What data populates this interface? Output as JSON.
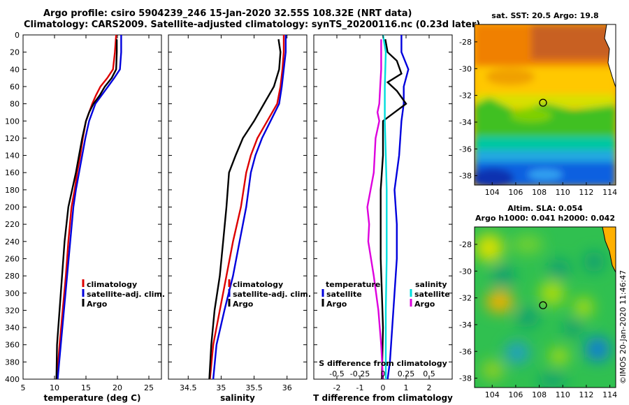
{
  "title": {
    "line1": "Argo profile: csiro 5904239_246 15-Jan-2020 32.55S 108.32E (NRT data)",
    "line2": "Climatology: CARS2009. Satellite-adjusted climatology: synTS_20200116.nc (0.23d later)"
  },
  "colors": {
    "climatology": "#dd0000",
    "satellite": "#0000dd",
    "argo": "#000000",
    "salinity_argo": "#dd00dd",
    "salinity_satellite": "#00dddd"
  },
  "chart_data": [
    {
      "type": "line",
      "id": "temperature",
      "xlabel": "temperature (deg C)",
      "ylabel": "",
      "xlim": [
        5,
        27
      ],
      "ylim": [
        400,
        0
      ],
      "xticks": [
        "5",
        "10",
        "15",
        "20",
        "25"
      ],
      "xtick_values": [
        5,
        10,
        15,
        20,
        25
      ],
      "yticks": [
        "0",
        "20",
        "40",
        "60",
        "80",
        "100",
        "120",
        "140",
        "160",
        "180",
        "200",
        "220",
        "240",
        "260",
        "280",
        "300",
        "320",
        "340",
        "360",
        "380",
        "400"
      ],
      "ytick_values": [
        0,
        20,
        40,
        60,
        80,
        100,
        120,
        140,
        160,
        180,
        200,
        220,
        240,
        260,
        280,
        300,
        320,
        340,
        360,
        380,
        400
      ],
      "legend": [
        "climatology",
        "satellite-adj. clim.",
        "Argo"
      ],
      "series": [
        {
          "name": "climatology",
          "color_key": "climatology",
          "x": [
            19.8,
            19.6,
            19.3,
            18.4,
            17.3,
            16.6,
            16.0,
            15.0,
            14.5,
            14.1,
            13.6,
            13.2,
            12.7,
            12.2,
            11.8,
            11.3,
            10.8,
            10.4
          ],
          "y": [
            0,
            20,
            40,
            50,
            60,
            70,
            80,
            100,
            120,
            140,
            160,
            180,
            200,
            240,
            280,
            320,
            360,
            400
          ]
        },
        {
          "name": "satellite-adj. clim.",
          "color_key": "satellite",
          "x": [
            20.6,
            20.6,
            20.4,
            19.5,
            18.5,
            17.5,
            16.5,
            15.5,
            14.9,
            14.4,
            13.9,
            13.4,
            13.0,
            12.5,
            12.0,
            11.5,
            11.0,
            10.5
          ],
          "y": [
            0,
            20,
            40,
            50,
            60,
            70,
            80,
            100,
            120,
            140,
            160,
            180,
            200,
            240,
            280,
            320,
            360,
            400
          ]
        },
        {
          "name": "Argo",
          "color_key": "argo",
          "x": [
            19.9,
            19.9,
            19.8,
            19.1,
            18.0,
            17.2,
            16.2,
            15.5,
            15.0,
            14.4,
            13.9,
            13.4,
            12.8,
            12.2,
            11.6,
            11.2,
            10.8,
            10.4,
            10.3
          ],
          "y": [
            5,
            20,
            40,
            50,
            60,
            70,
            80,
            90,
            100,
            120,
            140,
            160,
            180,
            200,
            240,
            280,
            320,
            360,
            400
          ]
        }
      ]
    },
    {
      "type": "line",
      "id": "salinity",
      "xlabel": "salinity",
      "xlim": [
        34.2,
        36.3
      ],
      "ylim": [
        400,
        0
      ],
      "xticks": [
        "34.5",
        "35",
        "35.5",
        "36"
      ],
      "xtick_values": [
        34.5,
        35,
        35.5,
        36
      ],
      "legend": [
        "climatology",
        "satellite-adj. clim.",
        "Argo"
      ],
      "series": [
        {
          "name": "climatology",
          "color_key": "climatology",
          "x": [
            35.95,
            35.95,
            35.93,
            35.9,
            35.85,
            35.7,
            35.55,
            35.45,
            35.38,
            35.3,
            35.18,
            35.08,
            34.98,
            34.88,
            34.83
          ],
          "y": [
            0,
            20,
            40,
            60,
            80,
            100,
            120,
            140,
            160,
            200,
            240,
            280,
            320,
            360,
            400
          ]
        },
        {
          "name": "satellite-adj. clim.",
          "color_key": "satellite",
          "x": [
            35.98,
            35.98,
            35.95,
            35.92,
            35.88,
            35.75,
            35.62,
            35.52,
            35.45,
            35.38,
            35.28,
            35.18,
            35.05,
            34.93,
            34.88
          ],
          "y": [
            0,
            20,
            40,
            60,
            80,
            100,
            120,
            140,
            160,
            200,
            240,
            280,
            320,
            360,
            400
          ]
        },
        {
          "name": "Argo",
          "color_key": "argo",
          "x": [
            35.87,
            35.9,
            35.88,
            35.8,
            35.65,
            35.5,
            35.33,
            35.22,
            35.12,
            35.08,
            35.03,
            34.98,
            34.9,
            34.85,
            34.82
          ],
          "y": [
            5,
            20,
            40,
            60,
            80,
            100,
            120,
            140,
            160,
            200,
            240,
            280,
            320,
            360,
            400
          ]
        }
      ]
    },
    {
      "type": "line",
      "id": "differences",
      "xlabel": "T difference from climatology",
      "xlabel_top": "S difference from climatology",
      "xlim": [
        -3,
        3
      ],
      "ylim": [
        400,
        0
      ],
      "xticks": [
        "-2",
        "-1",
        "0",
        "1",
        "2"
      ],
      "xtick_values": [
        -2,
        -1,
        0,
        1,
        2
      ],
      "xticks_top": [
        "-0.5",
        "-0.25",
        "0",
        "0.25",
        "0.5"
      ],
      "xtick_values_top": [
        -0.5,
        -0.25,
        0,
        0.25,
        0.5
      ],
      "s_scale": 4,
      "legend_left_title": "temperature",
      "legend_right_title": "salinity",
      "legend_left": [
        "satellite",
        "Argo"
      ],
      "legend_right": [
        "satellite",
        "Argo"
      ],
      "series": [
        {
          "name": "T satellite",
          "color_key": "satellite",
          "x": [
            0.8,
            0.8,
            1.1,
            0.9,
            0.9,
            0.8,
            0.7,
            0.5,
            0.6,
            0.6,
            0.5,
            0.4,
            0.3,
            0.2
          ],
          "y": [
            0,
            20,
            40,
            60,
            80,
            100,
            140,
            180,
            220,
            260,
            300,
            340,
            380,
            400
          ]
        },
        {
          "name": "T Argo",
          "color_key": "argo",
          "x": [
            0.1,
            0.2,
            0.6,
            0.8,
            0.2,
            0.6,
            1.0,
            0.5,
            0.0,
            0.0,
            -0.1,
            -0.1,
            -0.1,
            -0.05,
            0.0,
            -0.05
          ],
          "y": [
            5,
            20,
            30,
            45,
            55,
            65,
            80,
            90,
            100,
            140,
            180,
            220,
            260,
            300,
            340,
            400
          ]
        },
        {
          "name": "S satellite",
          "color_key": "salinity_satellite",
          "x": [
            0.0,
            0.03,
            0.02,
            0.02,
            0.03,
            0.04,
            0.04,
            0.04,
            0.03,
            0.03
          ],
          "y": [
            0,
            20,
            60,
            100,
            140,
            180,
            220,
            260,
            320,
            400
          ]
        },
        {
          "name": "S Argo",
          "color_key": "salinity_argo",
          "x": [
            -0.02,
            -0.02,
            -0.03,
            -0.04,
            -0.06,
            -0.04,
            -0.08,
            -0.1,
            -0.17,
            -0.15,
            -0.16,
            -0.1,
            -0.05,
            -0.02,
            0.0
          ],
          "y": [
            5,
            40,
            60,
            80,
            90,
            100,
            120,
            160,
            200,
            220,
            240,
            280,
            320,
            360,
            400
          ]
        }
      ]
    },
    {
      "type": "heatmap",
      "id": "sst_map",
      "title": "sat. SST: 20.5 Argo: 19.8",
      "xlim": [
        102.5,
        114.5
      ],
      "ylim": [
        -38.7,
        -26.7
      ],
      "xticks": [
        "104",
        "106",
        "108",
        "110",
        "112",
        "114"
      ],
      "xtick_values": [
        104,
        106,
        108,
        110,
        112,
        114
      ],
      "yticks": [
        "-28",
        "-30",
        "-32",
        "-34",
        "-36",
        "-38"
      ],
      "ytick_values": [
        -28,
        -30,
        -32,
        -34,
        -36,
        -38
      ],
      "argo_position": {
        "lon": 108.32,
        "lat": -32.55
      }
    },
    {
      "type": "heatmap",
      "id": "sla_map",
      "title_line1": "Altim. SLA: 0.054",
      "title_line2": "Argo h1000: 0.041 h2000: 0.042",
      "xlim": [
        102.5,
        114.5
      ],
      "ylim": [
        -38.7,
        -26.7
      ],
      "xticks": [
        "104",
        "106",
        "108",
        "110",
        "112",
        "114"
      ],
      "xtick_values": [
        104,
        106,
        108,
        110,
        112,
        114
      ],
      "yticks": [
        "-28",
        "-30",
        "-32",
        "-34",
        "-36",
        "-38"
      ],
      "ytick_values": [
        -28,
        -30,
        -32,
        -34,
        -36,
        -38
      ],
      "argo_position": {
        "lon": 108.32,
        "lat": -32.55
      }
    }
  ],
  "copyright": "©IMOS 20-Jan-2020 11:46:47"
}
